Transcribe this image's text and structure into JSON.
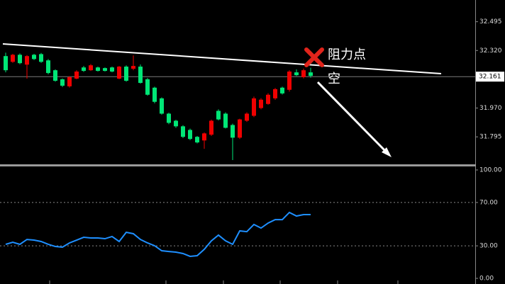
{
  "chart_data": [
    {
      "type": "candlestick",
      "ohlc": [
        [
          32.286,
          32.307,
          32.187,
          32.2
        ],
        [
          32.251,
          32.3,
          32.245,
          32.294
        ],
        [
          32.294,
          32.302,
          32.236,
          32.243
        ],
        [
          32.234,
          32.292,
          32.149,
          32.286
        ],
        [
          32.294,
          32.3,
          32.262,
          32.268
        ],
        [
          32.298,
          32.305,
          32.245,
          32.251
        ],
        [
          32.26,
          32.268,
          32.175,
          32.183
        ],
        [
          32.2,
          32.205,
          32.13,
          32.136
        ],
        [
          32.145,
          32.15,
          32.098,
          32.106
        ],
        [
          32.102,
          32.164,
          32.094,
          32.158
        ],
        [
          32.149,
          32.2,
          32.145,
          32.192
        ],
        [
          32.217,
          32.226,
          32.19,
          32.196
        ],
        [
          32.2,
          32.238,
          32.196,
          32.23
        ],
        [
          32.217,
          32.222,
          32.192,
          32.196
        ],
        [
          32.213,
          32.217,
          32.192,
          32.196
        ],
        [
          32.217,
          32.222,
          32.187,
          32.192
        ],
        [
          32.149,
          32.226,
          32.145,
          32.222
        ],
        [
          32.222,
          32.23,
          32.13,
          32.136
        ],
        [
          32.209,
          32.29,
          32.2,
          32.226
        ],
        [
          32.222,
          32.235,
          32.119,
          32.123
        ],
        [
          32.145,
          32.153,
          32.045,
          32.051
        ],
        [
          32.094,
          32.1,
          31.999,
          32.008
        ],
        [
          32.029,
          32.035,
          31.93,
          31.936
        ],
        [
          31.936,
          31.942,
          31.872,
          31.88
        ],
        [
          31.893,
          31.899,
          31.85,
          31.859
        ],
        [
          31.859,
          31.866,
          31.788,
          31.795
        ],
        [
          31.837,
          31.845,
          31.775,
          31.782
        ],
        [
          31.795,
          31.8,
          31.755,
          31.761
        ],
        [
          31.773,
          31.822,
          31.722,
          31.816
        ],
        [
          31.808,
          31.9,
          31.8,
          31.893
        ],
        [
          31.953,
          31.962,
          31.895,
          31.901
        ],
        [
          31.936,
          31.944,
          31.846,
          31.85
        ],
        [
          31.867,
          31.875,
          31.654,
          31.79
        ],
        [
          31.79,
          31.905,
          31.782,
          31.901
        ],
        [
          31.893,
          31.944,
          31.886,
          31.936
        ],
        [
          31.923,
          32.04,
          31.915,
          32.029
        ],
        [
          31.97,
          32.03,
          31.962,
          32.021
        ],
        [
          31.995,
          32.06,
          31.99,
          32.051
        ],
        [
          32.029,
          32.092,
          32.02,
          32.085
        ],
        [
          32.094,
          32.1,
          32.052,
          32.059
        ],
        [
          32.081,
          32.2,
          32.07,
          32.192
        ],
        [
          32.187,
          32.205,
          32.165,
          32.17
        ],
        [
          32.158,
          32.21,
          32.15,
          32.2
        ],
        [
          32.187,
          32.215,
          32.155,
          32.166
        ]
      ],
      "up_color": "#f00000",
      "down_color": "#00e676",
      "ylim": [
        31.628,
        32.627
      ],
      "yticks": [
        32.495,
        {
          "value": 32.32,
          "label": "32.320"
        },
        {
          "value": 31.97,
          "label": "31.970"
        },
        31.795
      ],
      "current_price": 32.161,
      "annotations": [
        "阻力点",
        "空"
      ]
    },
    {
      "type": "line",
      "values": [
        31.4,
        33.3,
        31.4,
        35.9,
        35.3,
        34.0,
        31.4,
        29.4,
        28.8,
        32.7,
        35.3,
        37.9,
        37.3,
        37.3,
        36.6,
        38.6,
        34.0,
        42.5,
        41.2,
        35.9,
        32.7,
        30.1,
        25.5,
        24.8,
        24.2,
        22.9,
        20.3,
        20.9,
        26.8,
        34.6,
        39.9,
        34.6,
        31.4,
        43.8,
        43.1,
        49.7,
        46.4,
        51.0,
        54.2,
        54.2,
        60.8,
        57.5,
        58.8,
        58.8
      ],
      "color": "#1e8fff",
      "ylim": [
        -5.2,
        102.6
      ],
      "yticks": [
        {
          "value": 100,
          "label": "100.00"
        },
        {
          "value": 70,
          "label": "70.00"
        },
        {
          "value": 30,
          "label": "30.00"
        },
        {
          "value": 0,
          "label": "0.00"
        }
      ],
      "levels": [
        70,
        30
      ]
    }
  ]
}
